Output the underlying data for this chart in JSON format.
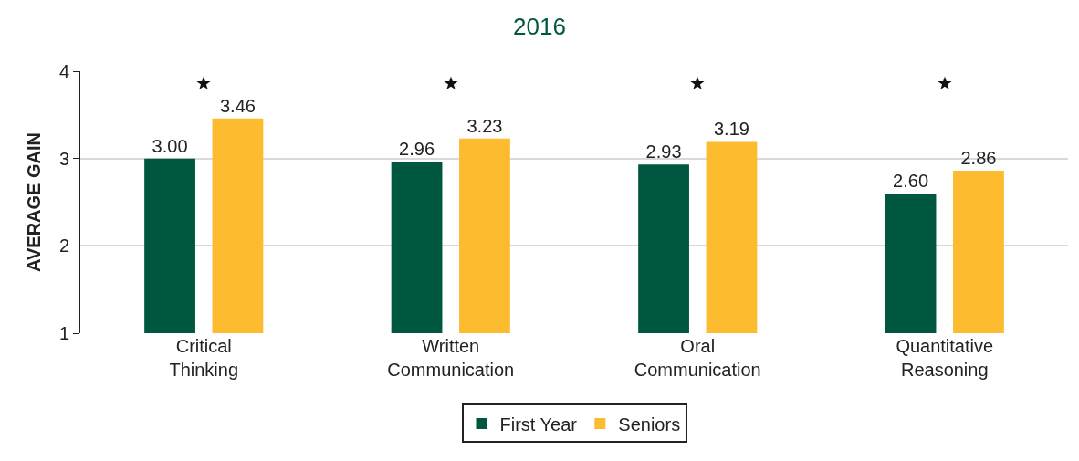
{
  "chart_data": {
    "type": "bar",
    "title": "2016",
    "ylabel": "AVERAGE GAIN",
    "categories": [
      "Critical Thinking",
      "Written Communication",
      "Oral Communication",
      "Quantitative Reasoning"
    ],
    "series": [
      {
        "name": "First Year",
        "color": "#00573f",
        "values": [
          3.0,
          2.96,
          2.93,
          2.6
        ],
        "value_labels": [
          "3.00",
          "2.96",
          "2.93",
          "2.60"
        ]
      },
      {
        "name": "Seniors",
        "color": "#fdbb30",
        "values": [
          3.46,
          3.23,
          3.19,
          2.86
        ],
        "value_labels": [
          "3.46",
          "3.23",
          "3.19",
          "2.86"
        ]
      }
    ],
    "ylim": [
      1,
      4
    ],
    "yticks": [
      1,
      2,
      3,
      4
    ],
    "grid": "y",
    "legend": "bottom",
    "annotations": [
      "★",
      "★",
      "★",
      "★"
    ]
  }
}
